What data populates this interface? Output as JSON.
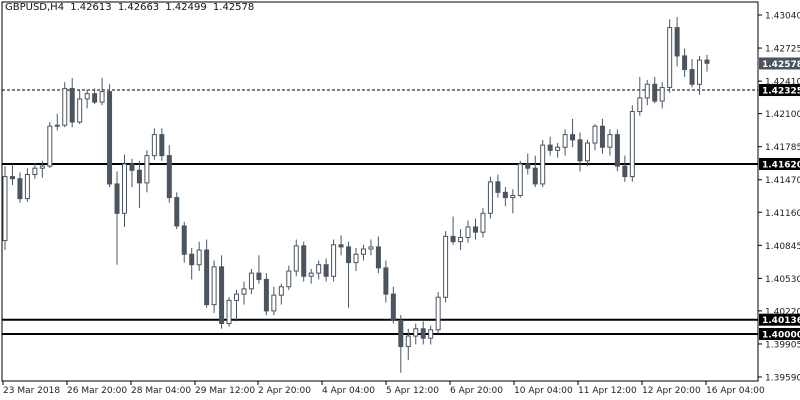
{
  "header": {
    "symbol": "GBPUSD,H4",
    "open": "1.42613",
    "high": "1.42663",
    "low": "1.42499",
    "close": "1.42578"
  },
  "colors": {
    "bull_body": "#ffffff",
    "bear_body": "#4a5560",
    "wick": "#4a5560",
    "level_line": "#000000",
    "price_tag_bg": "#000000",
    "price_tag_text": "#ffffff",
    "current_tag_bg": "#4a5560"
  },
  "chart_data": {
    "type": "candlestick",
    "title": "",
    "xlabel": "",
    "ylabel": "",
    "ylim": [
      1.3955,
      1.4318
    ],
    "y_ticks": [
      "1.43040",
      "1.42725",
      "1.42410",
      "1.42100",
      "1.41785",
      "1.41470",
      "1.41160",
      "1.40845",
      "1.40530",
      "1.40220",
      "1.39905",
      "1.39590"
    ],
    "x_ticks": [
      "23 Mar 2018",
      "26 Mar 20:00",
      "28 Mar 04:00",
      "29 Mar 12:00",
      "2 Apr 20:00",
      "4 Apr 04:00",
      "5 Apr 12:00",
      "6 Apr 20:00",
      "10 Apr 04:00",
      "11 Apr 12:00",
      "12 Apr 20:00",
      "16 Apr 04:00"
    ],
    "levels": [
      {
        "value": 1.4162,
        "label": "1.41620",
        "style": "solid"
      },
      {
        "value": 1.40136,
        "label": "1.40136",
        "style": "solid"
      },
      {
        "value": 1.4,
        "label": "1.40000",
        "style": "solid"
      },
      {
        "value": 1.42325,
        "label": "1.42325",
        "style": "dashed"
      }
    ],
    "current_price": {
      "value": 1.42578,
      "label": "1.42578"
    },
    "candles": [
      [
        1.4089,
        1.416,
        1.408,
        1.415
      ],
      [
        1.415,
        1.4162,
        1.4142,
        1.4148
      ],
      [
        1.4148,
        1.4154,
        1.4125,
        1.4129
      ],
      [
        1.4129,
        1.4158,
        1.4126,
        1.4152
      ],
      [
        1.4152,
        1.4163,
        1.4148,
        1.4158
      ],
      [
        1.4158,
        1.4165,
        1.4149,
        1.416
      ],
      [
        1.416,
        1.4202,
        1.4158,
        1.4198
      ],
      [
        1.4198,
        1.421,
        1.4194,
        1.4199
      ],
      [
        1.4199,
        1.424,
        1.4197,
        1.4234
      ],
      [
        1.4234,
        1.4244,
        1.4197,
        1.4202
      ],
      [
        1.4202,
        1.4232,
        1.42,
        1.4224
      ],
      [
        1.4224,
        1.4233,
        1.4215,
        1.4229
      ],
      [
        1.4229,
        1.4234,
        1.4219,
        1.4221
      ],
      [
        1.4221,
        1.4244,
        1.4218,
        1.4231
      ],
      [
        1.4231,
        1.4238,
        1.414,
        1.4143
      ],
      [
        1.4143,
        1.4155,
        1.4066,
        1.4115
      ],
      [
        1.4115,
        1.4171,
        1.4102,
        1.4162
      ],
      [
        1.4162,
        1.4167,
        1.414,
        1.4156
      ],
      [
        1.4156,
        1.4165,
        1.412,
        1.4144
      ],
      [
        1.4144,
        1.4175,
        1.4135,
        1.417
      ],
      [
        1.417,
        1.4196,
        1.4166,
        1.419
      ],
      [
        1.419,
        1.4196,
        1.4165,
        1.417
      ],
      [
        1.417,
        1.418,
        1.4125,
        1.413
      ],
      [
        1.413,
        1.4135,
        1.41,
        1.4103
      ],
      [
        1.4103,
        1.4107,
        1.4068,
        1.4076
      ],
      [
        1.4076,
        1.4082,
        1.4052,
        1.4066
      ],
      [
        1.4066,
        1.4088,
        1.406,
        1.408
      ],
      [
        1.408,
        1.409,
        1.4025,
        1.4028
      ],
      [
        1.4028,
        1.407,
        1.402,
        1.4064
      ],
      [
        1.4064,
        1.4075,
        1.4005,
        1.401
      ],
      [
        1.401,
        1.4035,
        1.4007,
        1.4032
      ],
      [
        1.4032,
        1.4042,
        1.4012,
        1.4038
      ],
      [
        1.4038,
        1.405,
        1.4028,
        1.4043
      ],
      [
        1.4043,
        1.4062,
        1.4038,
        1.4058
      ],
      [
        1.4058,
        1.4075,
        1.4048,
        1.4052
      ],
      [
        1.4052,
        1.4058,
        1.4018,
        1.4022
      ],
      [
        1.4022,
        1.4045,
        1.4018,
        1.4037
      ],
      [
        1.4037,
        1.4048,
        1.4028,
        1.4045
      ],
      [
        1.4045,
        1.4065,
        1.4042,
        1.406
      ],
      [
        1.406,
        1.409,
        1.4055,
        1.4084
      ],
      [
        1.4084,
        1.4088,
        1.405,
        1.4055
      ],
      [
        1.4055,
        1.4062,
        1.4048,
        1.4058
      ],
      [
        1.4058,
        1.407,
        1.4052,
        1.4066
      ],
      [
        1.4066,
        1.4072,
        1.405,
        1.4055
      ],
      [
        1.4055,
        1.409,
        1.405,
        1.4085
      ],
      [
        1.4085,
        1.4094,
        1.4075,
        1.4083
      ],
      [
        1.4083,
        1.4088,
        1.4025,
        1.4068
      ],
      [
        1.4068,
        1.4082,
        1.406,
        1.4076
      ],
      [
        1.4076,
        1.4085,
        1.407,
        1.4081
      ],
      [
        1.4081,
        1.409,
        1.4075,
        1.4083
      ],
      [
        1.4083,
        1.4093,
        1.4058,
        1.4063
      ],
      [
        1.4063,
        1.407,
        1.403,
        1.4038
      ],
      [
        1.4038,
        1.4045,
        1.401,
        1.4013
      ],
      [
        1.4013,
        1.4018,
        1.3963,
        1.3988
      ],
      [
        1.3988,
        1.4005,
        1.3975,
        1.3998
      ],
      [
        1.3998,
        1.401,
        1.399,
        1.4005
      ],
      [
        1.4005,
        1.4012,
        1.399,
        1.3996
      ],
      [
        1.3996,
        1.4008,
        1.399,
        1.4004
      ],
      [
        1.4004,
        1.404,
        1.4,
        1.4035
      ],
      [
        1.4035,
        1.4098,
        1.403,
        1.4093
      ],
      [
        1.4093,
        1.4112,
        1.4085,
        1.4088
      ],
      [
        1.4088,
        1.41,
        1.408,
        1.4092
      ],
      [
        1.4092,
        1.4108,
        1.4087,
        1.4102
      ],
      [
        1.4102,
        1.411,
        1.409,
        1.4097
      ],
      [
        1.4097,
        1.412,
        1.4092,
        1.4115
      ],
      [
        1.4115,
        1.415,
        1.411,
        1.4145
      ],
      [
        1.4145,
        1.4152,
        1.413,
        1.4135
      ],
      [
        1.4135,
        1.414,
        1.4122,
        1.413
      ],
      [
        1.413,
        1.4138,
        1.4115,
        1.4132
      ],
      [
        1.4132,
        1.4165,
        1.413,
        1.4162
      ],
      [
        1.4162,
        1.4172,
        1.4152,
        1.4158
      ],
      [
        1.4158,
        1.417,
        1.414,
        1.4143
      ],
      [
        1.4143,
        1.4185,
        1.414,
        1.418
      ],
      [
        1.418,
        1.4188,
        1.417,
        1.4175
      ],
      [
        1.4175,
        1.4182,
        1.4168,
        1.4178
      ],
      [
        1.4178,
        1.4195,
        1.417,
        1.419
      ],
      [
        1.419,
        1.4205,
        1.4178,
        1.4185
      ],
      [
        1.4185,
        1.4192,
        1.4155,
        1.4165
      ],
      [
        1.4165,
        1.4185,
        1.416,
        1.4182
      ],
      [
        1.4182,
        1.42,
        1.4175,
        1.4198
      ],
      [
        1.4198,
        1.4205,
        1.4172,
        1.4178
      ],
      [
        1.4178,
        1.4195,
        1.417,
        1.419
      ],
      [
        1.419,
        1.4195,
        1.4155,
        1.416
      ],
      [
        1.416,
        1.417,
        1.4145,
        1.415
      ],
      [
        1.415,
        1.4218,
        1.4145,
        1.4212
      ],
      [
        1.4212,
        1.4245,
        1.4208,
        1.4225
      ],
      [
        1.4225,
        1.4242,
        1.4218,
        1.4238
      ],
      [
        1.4238,
        1.4245,
        1.422,
        1.4222
      ],
      [
        1.4222,
        1.424,
        1.4215,
        1.4235
      ],
      [
        1.4235,
        1.43,
        1.423,
        1.4292
      ],
      [
        1.4292,
        1.4302,
        1.4255,
        1.4265
      ],
      [
        1.4265,
        1.4272,
        1.4245,
        1.4252
      ],
      [
        1.4252,
        1.4262,
        1.4235,
        1.4238
      ],
      [
        1.4238,
        1.4265,
        1.4228,
        1.4261
      ],
      [
        1.4261,
        1.4266,
        1.425,
        1.4258
      ]
    ]
  }
}
